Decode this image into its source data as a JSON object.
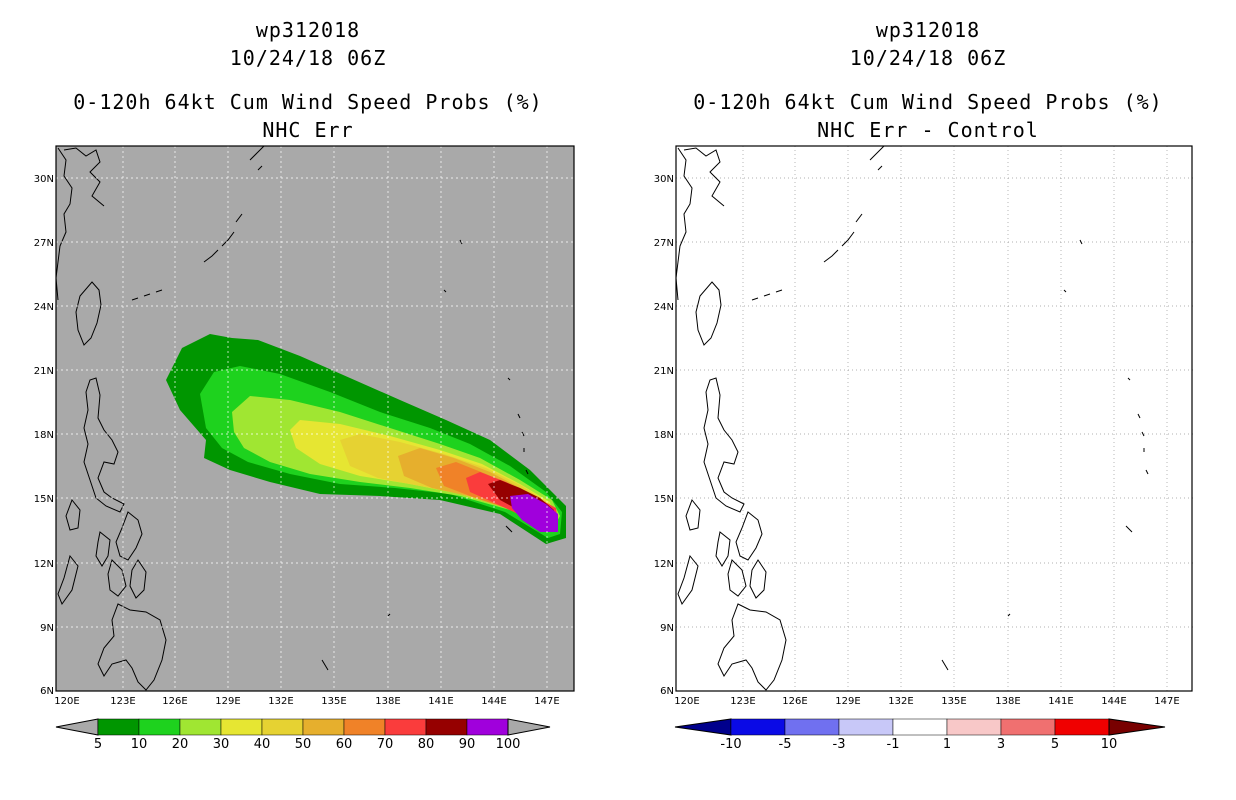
{
  "colors": {
    "land_gray": "#a9a9a9",
    "prob_fill": [
      "#009600",
      "#1ed21e",
      "#a0e632",
      "#e6e632",
      "#e6d232",
      "#e6af2d",
      "#f08228",
      "#fa3c3c",
      "#960000",
      "#a000dc"
    ],
    "diff_fill": [
      "#00008c",
      "#0a0ae6",
      "#7070f0",
      "#c8c8f8",
      "#ffffff",
      "#f8c8c8",
      "#f07070",
      "#f00000",
      "#780000"
    ]
  },
  "left": {
    "storm_id": "wp312018",
    "datetime": "10/24/18 06Z",
    "product": "0-120h 64kt Cum Wind Speed Probs (%)",
    "subtitle": "NHC Err",
    "colorbar_labels": [
      "5",
      "10",
      "20",
      "30",
      "40",
      "50",
      "60",
      "70",
      "80",
      "90",
      "100"
    ]
  },
  "right": {
    "storm_id": "wp312018",
    "datetime": "10/24/18 06Z",
    "product": "0-120h 64kt Cum Wind Speed Probs (%)",
    "subtitle": "NHC Err - Control",
    "colorbar_labels": [
      "-10",
      "-5",
      "-3",
      "-1",
      "1",
      "3",
      "5",
      "10"
    ]
  },
  "axes": {
    "lat_labels": [
      "30N",
      "27N",
      "24N",
      "21N",
      "18N",
      "15N",
      "12N",
      "9N",
      "6N"
    ],
    "lon_labels": [
      "120E",
      "123E",
      "126E",
      "129E",
      "132E",
      "135E",
      "138E",
      "141E",
      "144E",
      "147E"
    ]
  }
}
